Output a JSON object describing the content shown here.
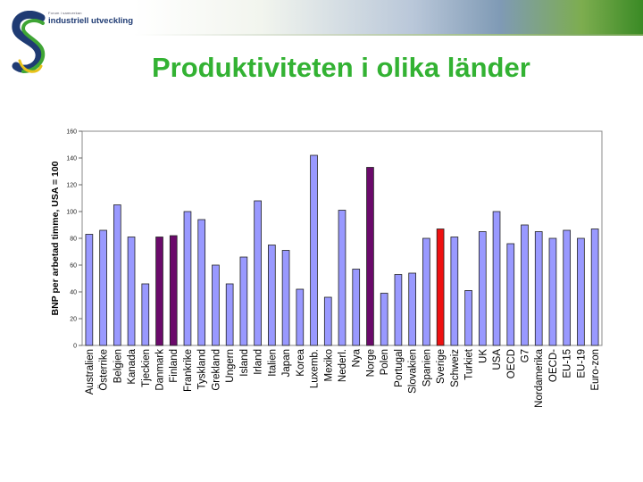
{
  "logo": {
    "small_text": "Forum i samverkan",
    "name": "industriell utveckling"
  },
  "title": "Produktiviteten i olika länder",
  "chart_data": {
    "type": "bar",
    "ylabel": "BNP per arbetad timme, USA = 100",
    "ylim": [
      0,
      160
    ],
    "yticks": [
      0,
      20,
      40,
      60,
      80,
      100,
      120,
      140,
      160
    ],
    "grid": false,
    "categories": [
      "Australien",
      "Österrike",
      "Belgien",
      "Kanada",
      "Tjeckien",
      "Danmark",
      "Finland",
      "Frankrike",
      "Tyskland",
      "Grekland",
      "Ungern",
      "Island",
      "Irland",
      "Italien",
      "Japan",
      "Korea",
      "Luxemb.",
      "Mexiko",
      "Nederl.",
      "Nya",
      "Norge",
      "Polen",
      "Portugal",
      "Slovakien",
      "Spanien",
      "Sverige",
      "Schweiz",
      "Turkiet",
      "UK",
      "USA",
      "OECD",
      "G7",
      "Nordamerika",
      "OECD-",
      "EU-15",
      "EU-19",
      "Euro-zon"
    ],
    "values": [
      83,
      86,
      105,
      81,
      46,
      81,
      82,
      100,
      94,
      60,
      46,
      66,
      108,
      75,
      71,
      42,
      142,
      36,
      101,
      57,
      133,
      39,
      53,
      54,
      80,
      87,
      81,
      41,
      85,
      100,
      76,
      90,
      85,
      80,
      86,
      80,
      87
    ],
    "bar_colors": {
      "default": "#9999ff",
      "highlight_purple": "#6b0a6b",
      "highlight_red": "#ee1111",
      "purple_categories": [
        "Danmark",
        "Finland",
        "Norge"
      ],
      "red_categories": [
        "Sverige"
      ]
    }
  }
}
